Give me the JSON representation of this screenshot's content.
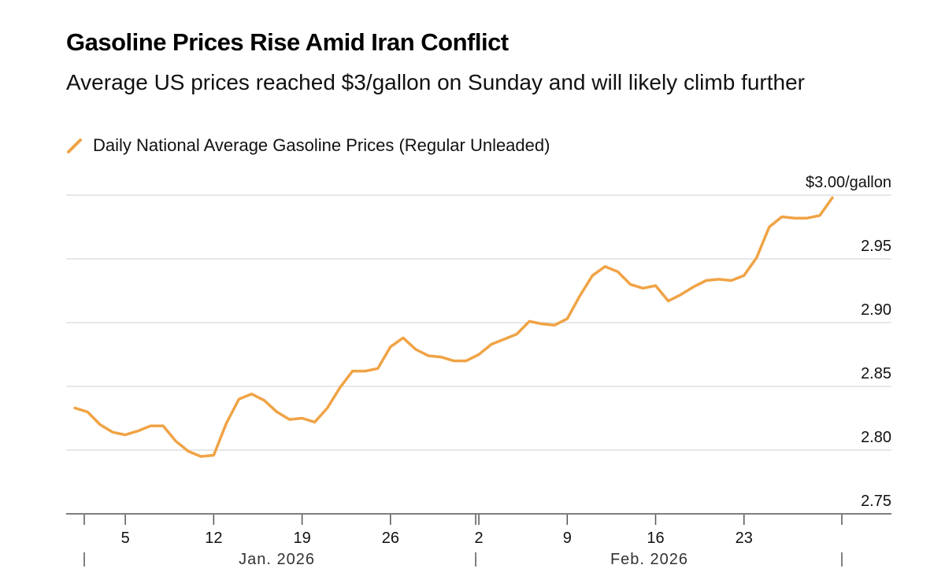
{
  "chart_data": {
    "type": "line",
    "title": "Gasoline Prices Rise Amid Iran Conflict",
    "subtitle": "Average US prices reached $3/gallon on Sunday and will likely climb further",
    "legend": "Daily National Average Gasoline Prices (Regular Unleaded)",
    "series_color": "#f0a345",
    "ylim": [
      2.75,
      3.0
    ],
    "yticks": [
      {
        "value": 3.0,
        "label": "$3.00/gallon"
      },
      {
        "value": 2.95,
        "label": "2.95"
      },
      {
        "value": 2.9,
        "label": "2.90"
      },
      {
        "value": 2.85,
        "label": "2.85"
      },
      {
        "value": 2.8,
        "label": "2.80"
      },
      {
        "value": 2.75,
        "label": "2.75"
      }
    ],
    "x_day_range": [
      1,
      61
    ],
    "xticks": [
      {
        "day": 5,
        "label": "5"
      },
      {
        "day": 12,
        "label": "12"
      },
      {
        "day": 19,
        "label": "19"
      },
      {
        "day": 26,
        "label": "26"
      },
      {
        "day": 33,
        "label": "2"
      },
      {
        "day": 40,
        "label": "9"
      },
      {
        "day": 47,
        "label": "16"
      },
      {
        "day": 54,
        "label": "23"
      }
    ],
    "month_labels": [
      {
        "label": "Jan. 2026",
        "center_day": 17
      },
      {
        "label": "Feb. 2026",
        "center_day": 46.5
      }
    ],
    "month_boundaries": [
      1,
      32,
      61
    ],
    "values": [
      2.833,
      2.83,
      2.82,
      2.814,
      2.812,
      2.815,
      2.819,
      2.819,
      2.807,
      2.799,
      2.795,
      2.796,
      2.821,
      2.84,
      2.844,
      2.839,
      2.83,
      2.824,
      2.825,
      2.822,
      2.833,
      2.849,
      2.862,
      2.862,
      2.864,
      2.881,
      2.888,
      2.879,
      2.874,
      2.873,
      2.87,
      2.87,
      2.875,
      2.883,
      2.887,
      2.891,
      2.901,
      2.899,
      2.898,
      2.903,
      2.921,
      2.937,
      2.944,
      2.94,
      2.93,
      2.927,
      2.929,
      2.917,
      2.922,
      2.928,
      2.933,
      2.934,
      2.933,
      2.937,
      2.951,
      2.975,
      2.983,
      2.982,
      2.982,
      2.984,
      2.998
    ]
  }
}
